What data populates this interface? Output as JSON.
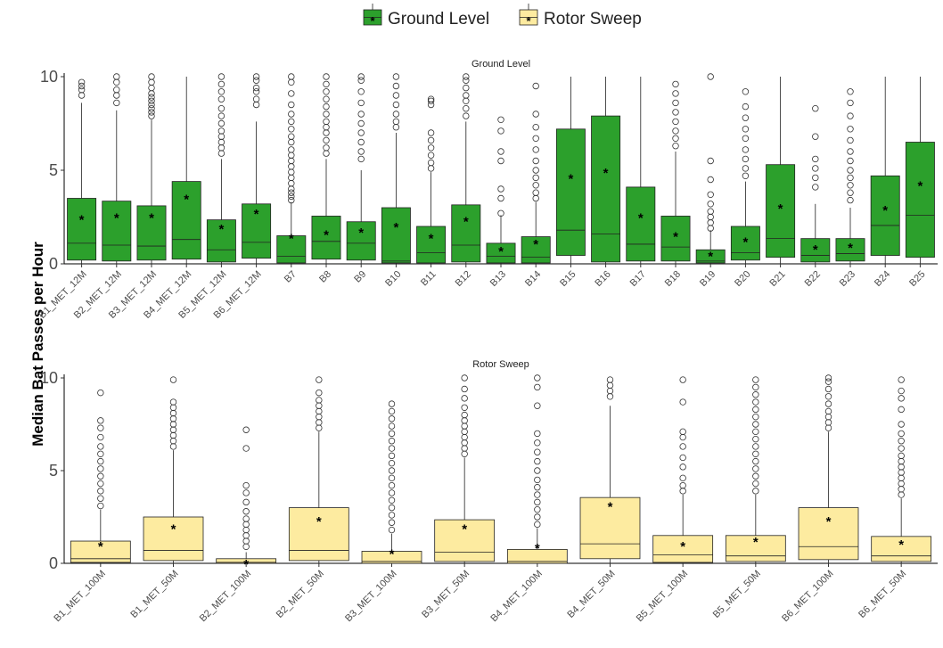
{
  "legend": {
    "items": [
      {
        "label": "Ground Level",
        "color": "#2ca02c"
      },
      {
        "label": "Rotor Sweep",
        "color": "#fdeba0"
      }
    ],
    "placement": "top-center"
  },
  "y_axis_label": "Median Bat Passes per Hour",
  "chart_data": [
    {
      "type": "box",
      "facet": "Ground Level",
      "fill": "#2ca02c",
      "ylim": [
        0,
        10
      ],
      "yticks": [
        0,
        5,
        10
      ],
      "categories": [
        "B1_MET_12M",
        "B2_MET_12M",
        "B3_MET_12M",
        "B4_MET_12M",
        "B5_MET_12M",
        "B6_MET_12M",
        "B7",
        "B8",
        "B9",
        "B10",
        "B11",
        "B12",
        "B13",
        "B14",
        "B15",
        "B16",
        "B17",
        "B18",
        "B19",
        "B20",
        "B21",
        "B22",
        "B23",
        "B24",
        "B25"
      ],
      "boxes": [
        {
          "q1": 0.2,
          "median": 1.1,
          "q3": 3.5,
          "lower": 0,
          "upper": 8.6,
          "mean": 2.5,
          "outliers": [
            9.0,
            9.3,
            9.5,
            9.7
          ]
        },
        {
          "q1": 0.15,
          "median": 1.0,
          "q3": 3.35,
          "lower": 0,
          "upper": 8.2,
          "mean": 2.6,
          "outliers": [
            8.6,
            9.0,
            9.3,
            9.7,
            10.0
          ]
        },
        {
          "q1": 0.2,
          "median": 0.95,
          "q3": 3.1,
          "lower": 0,
          "upper": 7.7,
          "mean": 2.6,
          "outliers": [
            7.9,
            8.1,
            8.3,
            8.5,
            8.7,
            8.9,
            9.1,
            9.4,
            9.7,
            10.0
          ]
        },
        {
          "q1": 0.25,
          "median": 1.3,
          "q3": 4.4,
          "lower": 0,
          "upper": 10.0,
          "mean": 3.6,
          "outliers": []
        },
        {
          "q1": 0.1,
          "median": 0.75,
          "q3": 2.35,
          "lower": 0,
          "upper": 5.6,
          "mean": 2.0,
          "outliers": [
            5.9,
            6.2,
            6.5,
            6.8,
            7.1,
            7.5,
            7.9,
            8.3,
            8.8,
            9.2,
            9.6,
            10.0
          ]
        },
        {
          "q1": 0.3,
          "median": 1.15,
          "q3": 3.2,
          "lower": 0,
          "upper": 7.6,
          "mean": 2.8,
          "outliers": [
            8.5,
            8.8,
            9.2,
            9.4,
            9.8,
            10.0
          ]
        },
        {
          "q1": 0.05,
          "median": 0.4,
          "q3": 1.5,
          "lower": 0,
          "upper": 3.3,
          "mean": 1.5,
          "outliers": [
            3.4,
            3.6,
            3.8,
            4.0,
            4.3,
            4.6,
            4.9,
            5.2,
            5.5,
            5.8,
            6.1,
            6.5,
            6.8,
            7.2,
            7.6,
            8.0,
            8.5,
            9.1,
            9.7,
            10.0
          ]
        },
        {
          "q1": 0.25,
          "median": 1.2,
          "q3": 2.55,
          "lower": 0,
          "upper": 5.6,
          "mean": 1.7,
          "outliers": [
            5.9,
            6.2,
            6.6,
            7.0,
            7.3,
            7.6,
            8.0,
            8.4,
            8.8,
            9.2,
            9.6,
            10.0
          ]
        },
        {
          "q1": 0.2,
          "median": 1.1,
          "q3": 2.25,
          "lower": 0,
          "upper": 5.0,
          "mean": 1.8,
          "outliers": [
            5.6,
            6.0,
            6.5,
            7.0,
            7.5,
            8.0,
            8.6,
            9.2,
            9.8,
            10.0
          ]
        },
        {
          "q1": 0.05,
          "median": 0.15,
          "q3": 3.0,
          "lower": 0,
          "upper": 7.0,
          "mean": 2.1,
          "outliers": [
            7.3,
            7.6,
            8.0,
            8.5,
            9.0,
            9.5,
            10.0
          ]
        },
        {
          "q1": 0.05,
          "median": 0.6,
          "q3": 2.0,
          "lower": 0,
          "upper": 4.9,
          "mean": 1.5,
          "outliers": [
            5.1,
            5.4,
            5.8,
            6.2,
            6.6,
            7.0,
            8.5,
            8.7,
            8.8
          ]
        },
        {
          "q1": 0.1,
          "median": 1.0,
          "q3": 3.15,
          "lower": 0,
          "upper": 7.6,
          "mean": 2.4,
          "outliers": [
            7.9,
            8.3,
            8.7,
            9.0,
            9.4,
            9.8,
            10.0
          ]
        },
        {
          "q1": 0.05,
          "median": 0.4,
          "q3": 1.1,
          "lower": 0,
          "upper": 2.6,
          "mean": 0.8,
          "outliers": [
            2.7,
            3.5,
            4.0,
            5.5,
            6.0,
            7.1,
            7.7
          ]
        },
        {
          "q1": 0.05,
          "median": 0.35,
          "q3": 1.45,
          "lower": 0,
          "upper": 3.3,
          "mean": 1.2,
          "outliers": [
            3.5,
            3.8,
            4.2,
            4.6,
            5.0,
            5.5,
            6.1,
            6.7,
            7.3,
            8.0,
            9.5
          ]
        },
        {
          "q1": 0.45,
          "median": 1.8,
          "q3": 7.2,
          "lower": 0,
          "upper": 10.0,
          "mean": 4.7,
          "outliers": []
        },
        {
          "q1": 0.1,
          "median": 1.6,
          "q3": 7.9,
          "lower": 0,
          "upper": 10.0,
          "mean": 5.0,
          "outliers": []
        },
        {
          "q1": 0.15,
          "median": 1.05,
          "q3": 4.1,
          "lower": 0,
          "upper": 10.0,
          "mean": 2.6,
          "outliers": []
        },
        {
          "q1": 0.15,
          "median": 0.9,
          "q3": 2.55,
          "lower": 0,
          "upper": 6.0,
          "mean": 1.6,
          "outliers": [
            6.3,
            6.7,
            7.1,
            7.6,
            8.1,
            8.6,
            9.1,
            9.6
          ]
        },
        {
          "q1": 0.05,
          "median": 0.15,
          "q3": 0.75,
          "lower": 0,
          "upper": 1.8,
          "mean": 0.55,
          "outliers": [
            1.9,
            2.2,
            2.5,
            2.8,
            3.2,
            3.7,
            4.5,
            5.5,
            10.0
          ]
        },
        {
          "q1": 0.2,
          "median": 0.6,
          "q3": 2.0,
          "lower": 0,
          "upper": 4.4,
          "mean": 1.3,
          "outliers": [
            4.7,
            5.1,
            5.6,
            6.1,
            6.7,
            7.2,
            7.8,
            8.4,
            9.2
          ]
        },
        {
          "q1": 0.35,
          "median": 1.35,
          "q3": 5.3,
          "lower": 0,
          "upper": 10.0,
          "mean": 3.1,
          "outliers": []
        },
        {
          "q1": 0.1,
          "median": 0.45,
          "q3": 1.35,
          "lower": 0,
          "upper": 3.2,
          "mean": 0.9,
          "outliers": [
            4.1,
            4.6,
            5.1,
            5.6,
            6.8,
            8.3
          ]
        },
        {
          "q1": 0.15,
          "median": 0.55,
          "q3": 1.35,
          "lower": 0,
          "upper": 3.0,
          "mean": 1.0,
          "outliers": [
            3.4,
            3.8,
            4.2,
            4.6,
            5.0,
            5.5,
            6.0,
            6.6,
            7.2,
            7.9,
            8.6,
            9.2
          ]
        },
        {
          "q1": 0.45,
          "median": 2.05,
          "q3": 4.7,
          "lower": 0,
          "upper": 10.0,
          "mean": 3.0,
          "outliers": []
        },
        {
          "q1": 0.35,
          "median": 2.6,
          "q3": 6.5,
          "lower": 0,
          "upper": 10.0,
          "mean": 4.3,
          "outliers": []
        }
      ]
    },
    {
      "type": "box",
      "facet": "Rotor Sweep",
      "fill": "#fdeba0",
      "ylim": [
        0,
        10
      ],
      "yticks": [
        0,
        5,
        10
      ],
      "categories": [
        "B1_MET_100M",
        "B1_MET_50M",
        "B2_MET_100M",
        "B2_MET_50M",
        "B3_MET_100M",
        "B3_MET_50M",
        "B4_MET_100M",
        "B4_MET_50M",
        "B5_MET_100M",
        "B5_MET_50M",
        "B6_MET_100M",
        "B6_MET_50M"
      ],
      "boxes": [
        {
          "q1": 0.05,
          "median": 0.25,
          "q3": 1.2,
          "lower": 0,
          "upper": 2.9,
          "mean": 1.05,
          "outliers": [
            3.1,
            3.5,
            3.9,
            4.3,
            4.7,
            5.1,
            5.5,
            5.9,
            6.3,
            6.8,
            7.3,
            7.7,
            9.2
          ]
        },
        {
          "q1": 0.15,
          "median": 0.7,
          "q3": 2.5,
          "lower": 0,
          "upper": 6.1,
          "mean": 2.0,
          "outliers": [
            6.3,
            6.6,
            6.9,
            7.2,
            7.5,
            7.8,
            8.1,
            8.4,
            8.7,
            9.9
          ]
        },
        {
          "q1": 0.0,
          "median": 0.05,
          "q3": 0.25,
          "lower": 0,
          "upper": 0.6,
          "mean": 0.1,
          "outliers": [
            0.9,
            1.2,
            1.5,
            1.8,
            2.1,
            2.4,
            2.8,
            3.3,
            3.8,
            4.2,
            6.2,
            7.2
          ]
        },
        {
          "q1": 0.15,
          "median": 0.7,
          "q3": 3.0,
          "lower": 0,
          "upper": 7.1,
          "mean": 2.4,
          "outliers": [
            7.3,
            7.6,
            7.9,
            8.2,
            8.5,
            8.8,
            9.2,
            9.9
          ]
        },
        {
          "q1": 0.0,
          "median": 0.1,
          "q3": 0.65,
          "lower": 0,
          "upper": 1.6,
          "mean": 0.65,
          "outliers": [
            1.8,
            2.2,
            2.6,
            3.0,
            3.4,
            3.8,
            4.2,
            4.6,
            5.0,
            5.4,
            5.8,
            6.2,
            6.6,
            7.0,
            7.4,
            7.8,
            8.2,
            8.6
          ]
        },
        {
          "q1": 0.1,
          "median": 0.6,
          "q3": 2.35,
          "lower": 0,
          "upper": 5.7,
          "mean": 2.0,
          "outliers": [
            5.9,
            6.2,
            6.5,
            6.8,
            7.1,
            7.4,
            7.7,
            8.0,
            8.4,
            8.9,
            9.4,
            10.0
          ]
        },
        {
          "q1": 0.0,
          "median": 0.1,
          "q3": 0.75,
          "lower": 0,
          "upper": 1.9,
          "mean": 0.95,
          "outliers": [
            2.1,
            2.5,
            2.9,
            3.3,
            3.7,
            4.1,
            4.5,
            5.0,
            5.5,
            6.0,
            6.5,
            7.0,
            8.5,
            9.5,
            10.0
          ]
        },
        {
          "q1": 0.25,
          "median": 1.05,
          "q3": 3.55,
          "lower": 0,
          "upper": 8.5,
          "mean": 3.2,
          "outliers": [
            9.0,
            9.3,
            9.6,
            9.9
          ]
        },
        {
          "q1": 0.05,
          "median": 0.45,
          "q3": 1.5,
          "lower": 0,
          "upper": 3.7,
          "mean": 1.05,
          "outliers": [
            3.9,
            4.2,
            4.6,
            5.2,
            5.7,
            6.3,
            6.8,
            7.1,
            8.7,
            9.9
          ]
        },
        {
          "q1": 0.1,
          "median": 0.4,
          "q3": 1.5,
          "lower": 0,
          "upper": 3.7,
          "mean": 1.3,
          "outliers": [
            3.9,
            4.3,
            4.7,
            5.1,
            5.5,
            5.9,
            6.3,
            6.7,
            7.1,
            7.5,
            7.9,
            8.3,
            8.7,
            9.1,
            9.5,
            9.9
          ]
        },
        {
          "q1": 0.2,
          "median": 0.9,
          "q3": 3.0,
          "lower": 0,
          "upper": 7.1,
          "mean": 2.4,
          "outliers": [
            7.3,
            7.6,
            7.9,
            8.2,
            8.6,
            9.0,
            9.4,
            9.8,
            10.0
          ]
        },
        {
          "q1": 0.1,
          "median": 0.4,
          "q3": 1.45,
          "lower": 0,
          "upper": 3.5,
          "mean": 1.15,
          "outliers": [
            3.7,
            4.0,
            4.3,
            4.6,
            4.9,
            5.2,
            5.5,
            5.8,
            6.2,
            6.6,
            7.0,
            7.5,
            8.3,
            8.9,
            9.3,
            9.9
          ]
        }
      ]
    }
  ]
}
